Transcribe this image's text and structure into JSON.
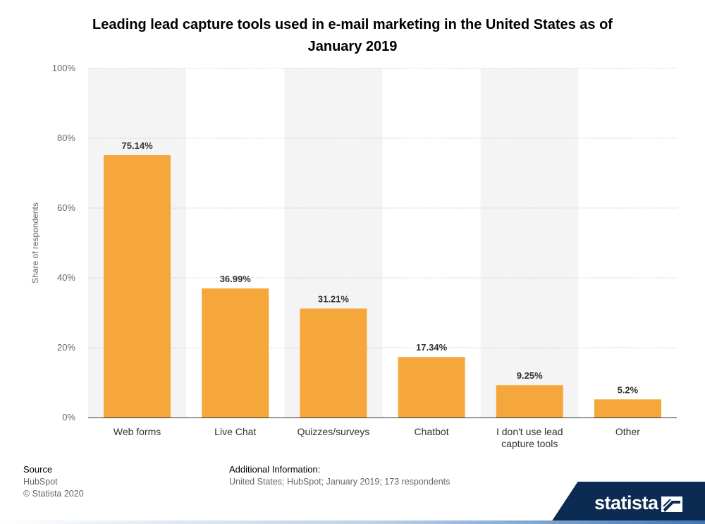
{
  "chart_data": {
    "type": "bar",
    "title": "Leading lead capture tools used in e-mail marketing in the United States as of January 2019",
    "ylabel": "Share of respondents",
    "xlabel": "",
    "ylim": [
      0,
      100
    ],
    "yticks": [
      0,
      20,
      40,
      60,
      80,
      100
    ],
    "ytick_labels": [
      "0%",
      "20%",
      "40%",
      "60%",
      "80%",
      "100%"
    ],
    "grid": true,
    "categories": [
      [
        "Web forms"
      ],
      [
        "Live Chat"
      ],
      [
        "Quizzes/surveys"
      ],
      [
        "Chatbot"
      ],
      [
        "I don't use lead",
        "capture tools"
      ],
      [
        "Other"
      ]
    ],
    "values": [
      75.14,
      36.99,
      31.21,
      17.34,
      9.25,
      5.2
    ],
    "data_labels": [
      "75.14%",
      "36.99%",
      "31.21%",
      "17.34%",
      "9.25%",
      "5.2%"
    ],
    "bar_color": "#f5a73c",
    "band_color": "#f4f4f4"
  },
  "footer": {
    "source_heading": "Source",
    "source_lines": [
      "HubSpot",
      "© Statista 2020"
    ],
    "info_heading": "Additional Information:",
    "info_text": "United States; HubSpot; January 2019; 173 respondents"
  },
  "brand": {
    "name": "statista",
    "logo_icon": "statista-logo-icon",
    "band_color": "#0b2b52"
  }
}
